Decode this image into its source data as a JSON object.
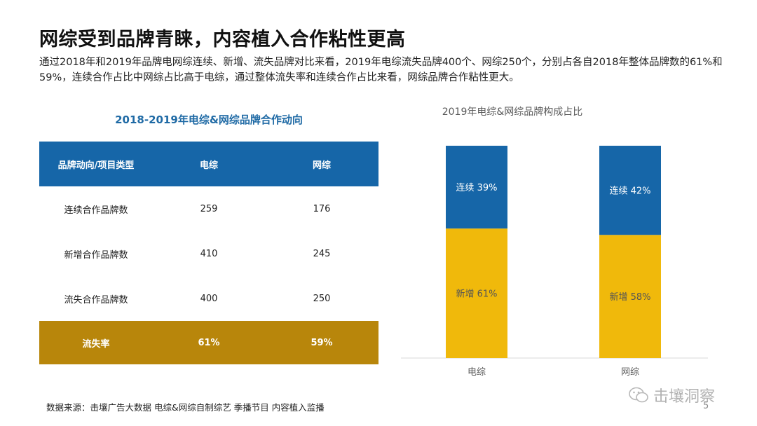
{
  "slide": {
    "title": "网综受到品牌青睐，内容植入合作粘性更高",
    "subtitle": "通过2018年和2019年品牌电网综连续、新增、流失品牌对比来看，2019年电综流失品牌400个、网综250个，分别占各自2018年整体品牌数的61%和59%，连续合作占比中网综占比高于电综，通过整体流失率和连续合作占比来看，网综品牌合作粘性更大。",
    "source": "数据来源：击壤广告大数据 电综&网综自制综艺 季播节目 内容植入监播",
    "page_number": "5",
    "watermark": "击壤洞察"
  },
  "table": {
    "title": "2018-2019年电综&网综品牌合作动向",
    "headers": [
      "品牌动向/项目类型",
      "电综",
      "网综"
    ],
    "rows": [
      [
        "连续合作品牌数",
        "259",
        "176"
      ],
      [
        "新增合作品牌数",
        "410",
        "245"
      ],
      [
        "流失合作品牌数",
        "400",
        "250"
      ]
    ],
    "total_row": [
      "流失率",
      "61%",
      "59%"
    ],
    "header_color": "#1666a8",
    "total_color": "#b8860b"
  },
  "chart_data": {
    "type": "bar",
    "stacked": true,
    "percent_stacked": true,
    "title": "2019年电综&网综品牌构成占比",
    "categories": [
      "电综",
      "网综"
    ],
    "series": [
      {
        "name": "新增",
        "values": [
          61,
          58
        ],
        "color": "#f0b90b"
      },
      {
        "name": "连续",
        "values": [
          39,
          42
        ],
        "color": "#1666a8"
      }
    ],
    "data_labels": [
      [
        "新增 61%",
        "新增 58%"
      ],
      [
        "连续 39%",
        "连续 42%"
      ]
    ],
    "ylim": [
      0,
      100
    ],
    "grid": false,
    "legend": "none"
  }
}
